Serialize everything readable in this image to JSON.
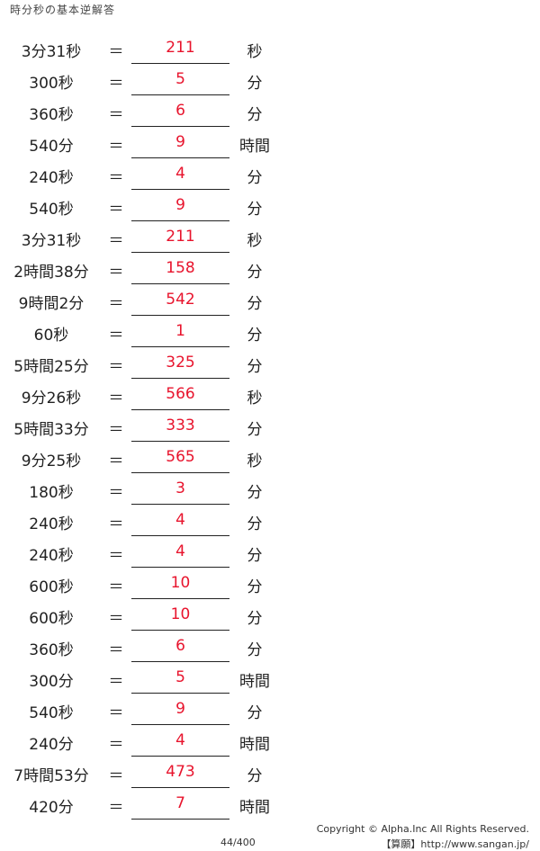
{
  "title": "時分秒の基本逆解答",
  "rows": [
    {
      "q": "3分31秒",
      "a": "211",
      "u": "秒"
    },
    {
      "q": "300秒",
      "a": "5",
      "u": "分"
    },
    {
      "q": "360秒",
      "a": "6",
      "u": "分"
    },
    {
      "q": "540分",
      "a": "9",
      "u": "時間"
    },
    {
      "q": "240秒",
      "a": "4",
      "u": "分"
    },
    {
      "q": "540秒",
      "a": "9",
      "u": "分"
    },
    {
      "q": "3分31秒",
      "a": "211",
      "u": "秒"
    },
    {
      "q": "2時間38分",
      "a": "158",
      "u": "分"
    },
    {
      "q": "9時間2分",
      "a": "542",
      "u": "分"
    },
    {
      "q": "60秒",
      "a": "1",
      "u": "分"
    },
    {
      "q": "5時間25分",
      "a": "325",
      "u": "分"
    },
    {
      "q": "9分26秒",
      "a": "566",
      "u": "秒"
    },
    {
      "q": "5時間33分",
      "a": "333",
      "u": "分"
    },
    {
      "q": "9分25秒",
      "a": "565",
      "u": "秒"
    },
    {
      "q": "180秒",
      "a": "3",
      "u": "分"
    },
    {
      "q": "240秒",
      "a": "4",
      "u": "分"
    },
    {
      "q": "240秒",
      "a": "4",
      "u": "分"
    },
    {
      "q": "600秒",
      "a": "10",
      "u": "分"
    },
    {
      "q": "600秒",
      "a": "10",
      "u": "分"
    },
    {
      "q": "360秒",
      "a": "6",
      "u": "分"
    },
    {
      "q": "300分",
      "a": "5",
      "u": "時間"
    },
    {
      "q": "540秒",
      "a": "9",
      "u": "分"
    },
    {
      "q": "240分",
      "a": "4",
      "u": "時間"
    },
    {
      "q": "7時間53分",
      "a": "473",
      "u": "分"
    },
    {
      "q": "420分",
      "a": "7",
      "u": "時間"
    }
  ],
  "equals": "＝",
  "footer": {
    "copyright": "Copyright © Alpha.Inc All Rights Reserved.",
    "site": "【算願】http://www.sangan.jp/",
    "page": "44/400"
  },
  "colors": {
    "answer": "#e8142d"
  }
}
